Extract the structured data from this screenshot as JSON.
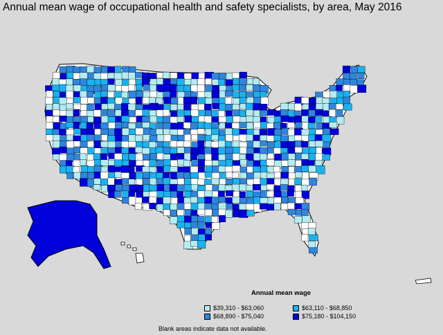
{
  "title": "Annual mean wage of occupational health and safety specialists, by area, May 2016",
  "legend": {
    "title": "Annual mean wage",
    "items": [
      {
        "label": "$39,310 - $63,060",
        "color": "#b3ecf2"
      },
      {
        "label": "$63,110 - $68,850",
        "color": "#1ab2f0"
      },
      {
        "label": "$68,890 - $75,040",
        "color": "#2e86de"
      },
      {
        "label": "$75,180 - $104,150",
        "color": "#0000d9"
      }
    ]
  },
  "note": "Blank areas indicate data not available.",
  "colors": {
    "background": "#d9d9d9",
    "blank": "#ffffff",
    "boundary": "#000000"
  },
  "regions": [
    {
      "name": "alaska",
      "class": 3
    },
    {
      "name": "hawaii",
      "class": -1
    },
    {
      "name": "puerto-rico",
      "class": -1
    }
  ]
}
